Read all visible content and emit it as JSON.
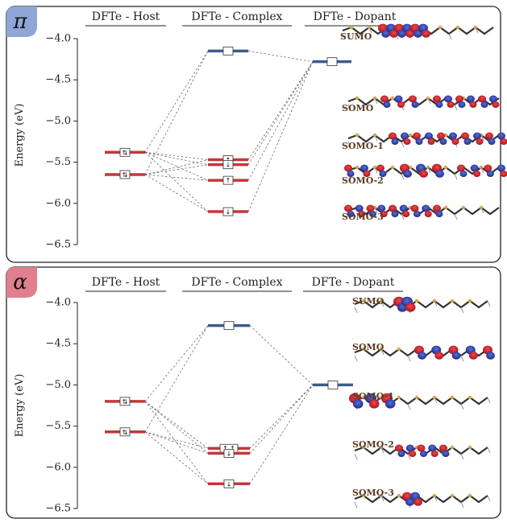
{
  "colors": {
    "host_level": "#c0393b",
    "complex_occupied": "#c0393b",
    "complex_unoccupied": "#3d5a8c",
    "dopant_level": "#3d5a8c",
    "pi_badge": "#8fa6d6",
    "alpha_badge": "#e07f8e",
    "orbital_positive": "#2a3ba8",
    "orbital_negative": "#d11f26",
    "molecule_carbon": "#333333",
    "molecule_sulfur": "#d9a441"
  },
  "panels": [
    {
      "badge": "π",
      "badge_icon": "pi-symbol",
      "ylabel": "Energy (eV)",
      "ylim": [
        -6.5,
        -4.0
      ],
      "yticks": [
        "−4.0",
        "−4.5",
        "−5.0",
        "−5.5",
        "−6.0",
        "−6.5"
      ],
      "ytick_values": [
        -4.0,
        -4.5,
        -5.0,
        -5.5,
        -6.0,
        -6.5
      ],
      "columns": [
        "DFTe - Host",
        "DFTe - Complex",
        "DFTe - Dopant"
      ],
      "levels": [
        {
          "column": "host",
          "energy": -5.38,
          "occupancy": "⇅",
          "kind": "occupied"
        },
        {
          "column": "host",
          "energy": -5.65,
          "occupancy": "⇅",
          "kind": "occupied"
        },
        {
          "column": "complex",
          "energy": -4.15,
          "occupancy": "",
          "kind": "unoccupied"
        },
        {
          "column": "complex",
          "energy": -5.47,
          "occupancy": "↑",
          "kind": "occupied"
        },
        {
          "column": "complex",
          "energy": -5.53,
          "occupancy": "↓",
          "kind": "occupied"
        },
        {
          "column": "complex",
          "energy": -5.72,
          "occupancy": "↑",
          "kind": "occupied"
        },
        {
          "column": "complex",
          "energy": -6.1,
          "occupancy": "↓",
          "kind": "occupied"
        },
        {
          "column": "dopant",
          "energy": -4.28,
          "occupancy": "",
          "kind": "unoccupied"
        }
      ],
      "orbital_labels": [
        "SUMO",
        "SOMO",
        "SOMO-1",
        "SOMO-2",
        "SOMO-3"
      ]
    },
    {
      "badge": "α",
      "badge_icon": "alpha-symbol",
      "ylabel": "Energy (eV)",
      "ylim": [
        -6.5,
        -4.0
      ],
      "yticks": [
        "−4.0",
        "−4.5",
        "−5.0",
        "−5.5",
        "−6.0",
        "−6.5"
      ],
      "ytick_values": [
        -4.0,
        -4.5,
        -5.0,
        -5.5,
        -6.0,
        -6.5
      ],
      "columns": [
        "DFTe - Host",
        "DFTe - Complex",
        "DFTe - Dopant"
      ],
      "levels": [
        {
          "column": "host",
          "energy": -5.2,
          "occupancy": "⇅",
          "kind": "occupied"
        },
        {
          "column": "host",
          "energy": -5.57,
          "occupancy": "⇅",
          "kind": "occupied"
        },
        {
          "column": "complex",
          "energy": -4.28,
          "occupancy": "",
          "kind": "unoccupied"
        },
        {
          "column": "complex",
          "energy": -5.77,
          "occupancy": "↑ ↑",
          "kind": "occupied"
        },
        {
          "column": "complex",
          "energy": -5.83,
          "occupancy": "↓",
          "kind": "occupied"
        },
        {
          "column": "complex",
          "energy": -6.2,
          "occupancy": "↓",
          "kind": "occupied"
        },
        {
          "column": "dopant",
          "energy": -5.0,
          "occupancy": "",
          "kind": "unoccupied"
        }
      ],
      "orbital_labels": [
        "SUMO",
        "SOMO",
        "SOMO-1",
        "SOMO-2",
        "SOMO-3"
      ]
    }
  ]
}
